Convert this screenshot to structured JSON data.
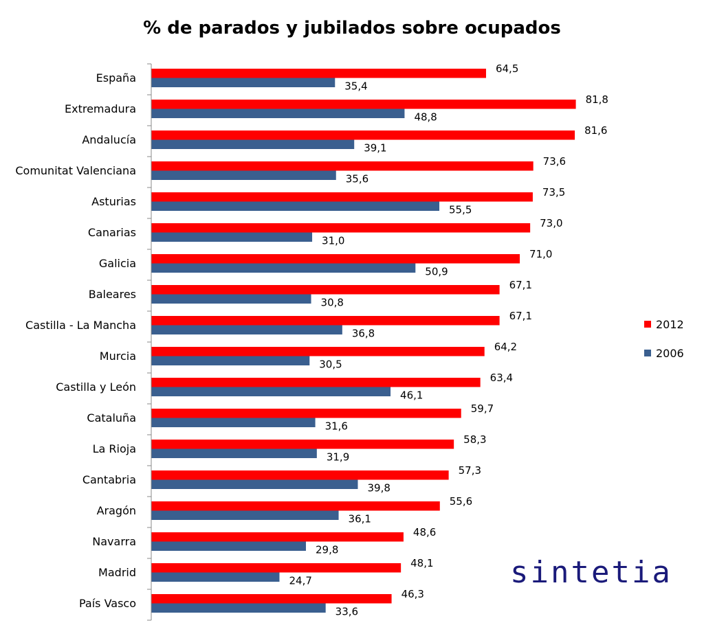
{
  "chart_data": {
    "type": "bar",
    "orientation": "horizontal",
    "title": "% de parados y jubilados sobre ocupados",
    "categories": [
      "España",
      "Extremadura",
      "Andalucía",
      "Comunitat Valenciana",
      "Asturias",
      "Canarias",
      "Galicia",
      "Baleares",
      "Castilla - La Mancha",
      "Murcia",
      "Castilla y León",
      "Cataluña",
      "La Rioja",
      "Cantabria",
      "Aragón",
      "Navarra",
      "Madrid",
      "País Vasco"
    ],
    "series": [
      {
        "name": "2012",
        "color": "#ff0000",
        "values": [
          64.5,
          81.8,
          81.6,
          73.6,
          73.5,
          73.0,
          71.0,
          67.1,
          67.1,
          64.2,
          63.4,
          59.7,
          58.3,
          57.3,
          55.6,
          48.6,
          48.1,
          46.3
        ],
        "labels": [
          "64,5",
          "81,8",
          "81,6",
          "73,6",
          "73,5",
          "73,0",
          "71,0",
          "67,1",
          "67,1",
          "64,2",
          "63,4",
          "59,7",
          "58,3",
          "57,3",
          "55,6",
          "48,6",
          "48,1",
          "46,3"
        ]
      },
      {
        "name": "2006",
        "color": "#3a5f8f",
        "values": [
          35.4,
          48.8,
          39.1,
          35.6,
          55.5,
          31.0,
          50.9,
          30.8,
          36.8,
          30.5,
          46.1,
          31.6,
          31.9,
          39.8,
          36.1,
          29.8,
          24.7,
          33.6
        ],
        "labels": [
          "35,4",
          "48,8",
          "39,1",
          "35,6",
          "55,5",
          "31,0",
          "50,9",
          "30,8",
          "36,8",
          "30,5",
          "46,1",
          "31,6",
          "31,9",
          "39,8",
          "36,1",
          "29,8",
          "24,7",
          "33,6"
        ]
      }
    ],
    "xlim": [
      0,
      85
    ],
    "grid": false,
    "legend_position": "right"
  },
  "logo": {
    "text": "sintetia",
    "color": "#1a1a7a"
  }
}
